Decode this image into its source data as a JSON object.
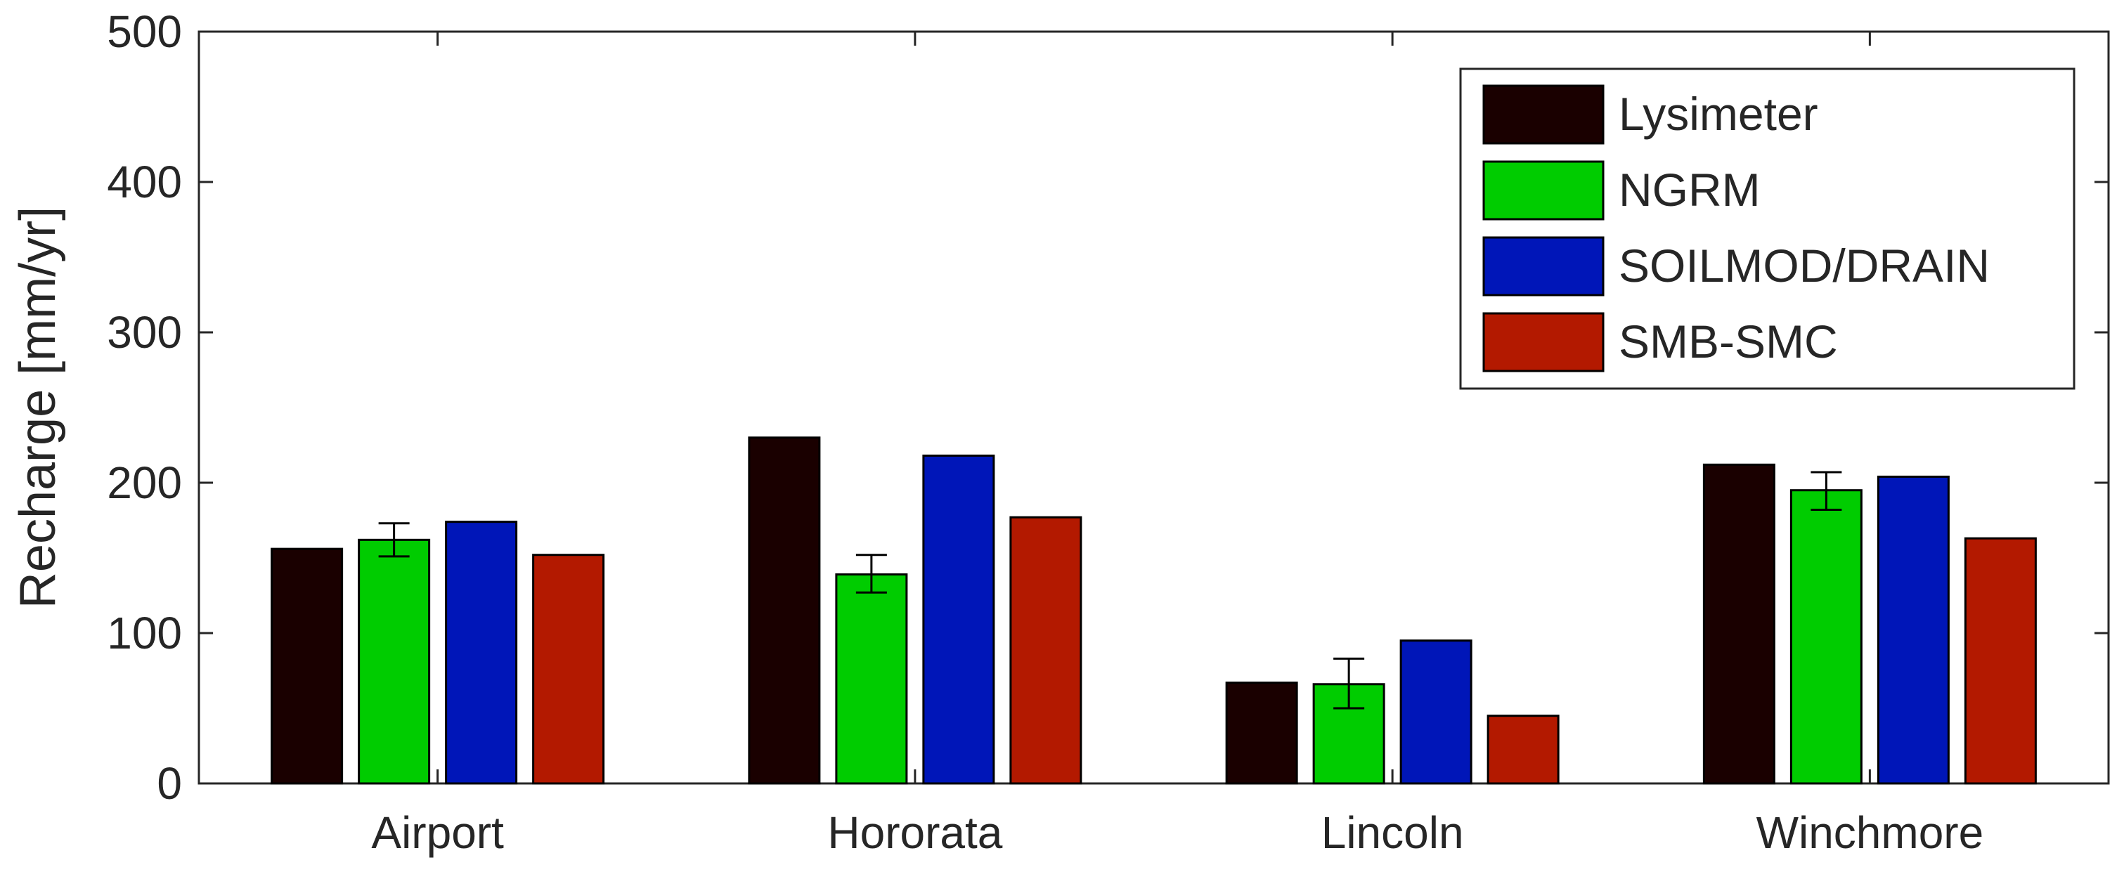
{
  "chart_data": {
    "type": "bar",
    "title": "",
    "xlabel": "",
    "ylabel": "Recharge [mm/yr]",
    "ylim": [
      0,
      500
    ],
    "yticks": [
      0,
      100,
      200,
      300,
      400,
      500
    ],
    "grid": false,
    "legend_position": "top-right",
    "categories": [
      "Airport",
      "Hororata",
      "Lincoln",
      "Winchmore"
    ],
    "series": [
      {
        "name": "Lysimeter",
        "color": "#1a0000",
        "values": [
          156,
          230,
          67,
          212
        ]
      },
      {
        "name": "NGRM",
        "color": "#00cc00",
        "values": [
          162,
          139,
          66,
          195
        ],
        "error": [
          [
            151,
            173
          ],
          [
            127,
            152
          ],
          [
            50,
            83
          ],
          [
            182,
            207
          ]
        ]
      },
      {
        "name": "SOILMOD/DRAIN",
        "color": "#0016b8",
        "values": [
          174,
          218,
          95,
          204
        ]
      },
      {
        "name": "SMB-SMC",
        "color": "#b31900",
        "values": [
          152,
          177,
          45,
          163
        ]
      }
    ]
  }
}
